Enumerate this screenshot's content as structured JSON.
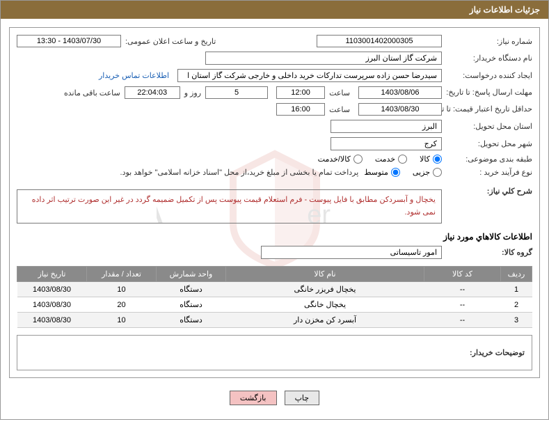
{
  "header": {
    "title": "جزئیات اطلاعات نیاز"
  },
  "fields": {
    "need_number_label": "شماره نیاز:",
    "need_number": "1103001402000305",
    "announce_label": "تاریخ و ساعت اعلان عمومی:",
    "announce_value": "1403/07/30 - 13:30",
    "buyer_org_label": "نام دستگاه خریدار:",
    "buyer_org": "شرکت گاز استان البرز",
    "requester_label": "ایجاد کننده درخواست:",
    "requester": "سیدرضا حسن زاده سرپرست تدارکات خرید داخلی و خارجی شرکت گاز استان ا",
    "contact_link": "اطلاعات تماس خریدار",
    "deadline_send_label": "مهلت ارسال پاسخ: تا تاریخ:",
    "deadline_send_date": "1403/08/06",
    "time_label": "ساعت",
    "deadline_send_time": "12:00",
    "days_remaining": "5",
    "days_and": "روز و",
    "time_remaining": "22:04:03",
    "remaining_suffix": "ساعت باقی مانده",
    "validity_label": "حداقل تاریخ اعتبار قیمت: تا تاریخ:",
    "validity_date": "1403/08/30",
    "validity_time": "16:00",
    "delivery_province_label": "استان محل تحویل:",
    "delivery_province": "البرز",
    "delivery_city_label": "شهر محل تحویل:",
    "delivery_city": "کرج",
    "category_label": "طبقه بندی موضوعی:",
    "cat_goods": "کالا",
    "cat_service": "خدمت",
    "cat_both": "کالا/خدمت",
    "process_label": "نوع فرآیند خرید :",
    "proc_small": "جزیی",
    "proc_medium": "متوسط",
    "proc_note": "پرداخت تمام یا بخشی از مبلغ خرید،از محل \"اسناد خزانه اسلامی\" خواهد بود.",
    "overall_label": "شرح کلي نیاز:",
    "overall_desc": "یخچال و آبسردکن مطابق با فایل پیوست - فرم استعلام قیمت پیوست پس از تکمیل ضمیمه گردد در غیر این صورت ترتیب اثر داده نمی شود.",
    "items_title": "اطلاعات کالاهاي مورد نیاز",
    "group_label": "گروه کالا:",
    "group_value": "امور تاسیساتی",
    "buyer_notes_label": "توضیحات خریدار:"
  },
  "table": {
    "headers": {
      "row": "ردیف",
      "code": "کد کالا",
      "name": "نام کالا",
      "unit": "واحد شمارش",
      "qty": "تعداد / مقدار",
      "need_date": "تاریخ نیاز"
    },
    "rows": [
      {
        "n": "1",
        "code": "--",
        "name": "یخچال فریزر خانگی",
        "unit": "دستگاه",
        "qty": "10",
        "date": "1403/08/30"
      },
      {
        "n": "2",
        "code": "--",
        "name": "یخچال خانگی",
        "unit": "دستگاه",
        "qty": "20",
        "date": "1403/08/30"
      },
      {
        "n": "3",
        "code": "--",
        "name": "آبسرد کن مخزن دار",
        "unit": "دستگاه",
        "qty": "10",
        "date": "1403/08/30"
      }
    ]
  },
  "buttons": {
    "print": "چاپ",
    "back": "بازگشت"
  },
  "colors": {
    "header_bg": "#8a6d3b",
    "th_bg": "#8a8a8a",
    "desc_text": "#b03030",
    "link": "#1a5fb4",
    "btn_back_bg": "#f4c2c2"
  }
}
